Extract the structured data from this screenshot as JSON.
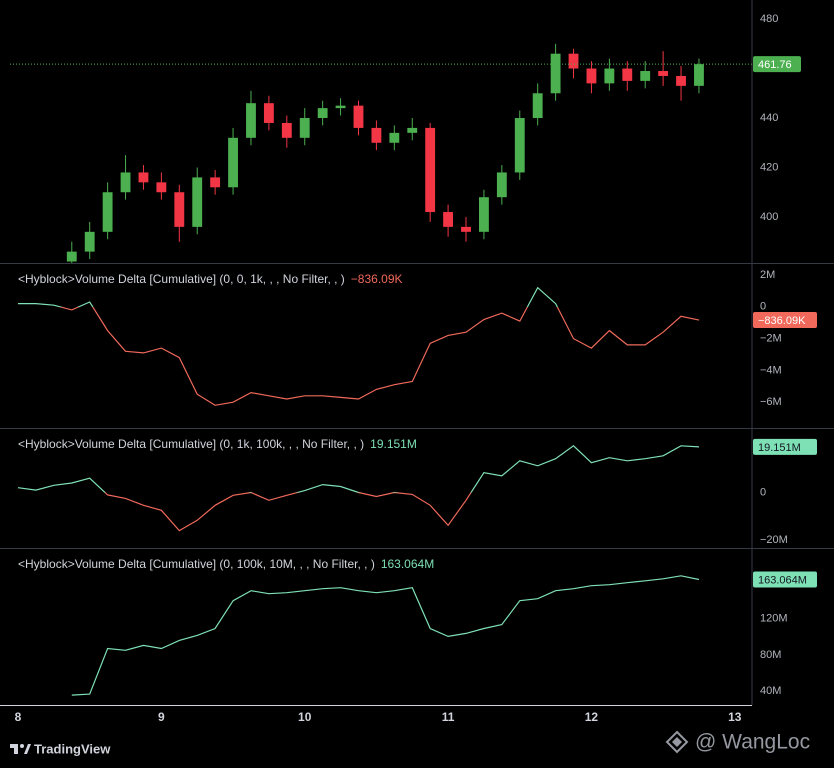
{
  "chart_data": [
    {
      "type": "candlestick",
      "up_color": "#4caf50",
      "down_color": "#f23645",
      "price_line_color": "#4caf50",
      "xlim": [
        7.944,
        13.12
      ],
      "ylim": [
        381.4,
        487.7
      ],
      "yticks": [
        400,
        420,
        440,
        480
      ],
      "x": [
        8.375,
        8.5,
        8.625,
        8.75,
        8.875,
        9.0,
        9.125,
        9.25,
        9.375,
        9.5,
        9.625,
        9.75,
        9.875,
        10.0,
        10.125,
        10.25,
        10.375,
        10.5,
        10.625,
        10.75,
        10.875,
        11.0,
        11.125,
        11.25,
        11.375,
        11.5,
        11.625,
        11.75,
        11.875,
        12.0,
        12.125,
        12.25,
        12.375,
        12.5,
        12.625,
        12.75
      ],
      "open": [
        382,
        386,
        394,
        410,
        418,
        414,
        410,
        396,
        416,
        412,
        432,
        446,
        438,
        432,
        440,
        444,
        445,
        436,
        430,
        434,
        436,
        402,
        396,
        394,
        408,
        418,
        440,
        450,
        466,
        460,
        454,
        460,
        455,
        459,
        457,
        453
      ],
      "high": [
        390,
        398,
        414,
        425,
        421,
        418,
        413,
        420,
        419,
        436,
        451,
        449,
        441,
        444,
        447,
        448,
        447,
        439,
        437,
        440,
        438,
        405,
        400,
        411,
        421,
        443,
        454,
        470,
        468,
        463,
        464,
        463,
        463,
        467,
        461,
        464
      ],
      "low": [
        378,
        383,
        391,
        407,
        411,
        407,
        390,
        393,
        409,
        409,
        429,
        435,
        428,
        429,
        437,
        441,
        433,
        427,
        427,
        431,
        398,
        392,
        390,
        391,
        405,
        415,
        437,
        447,
        456,
        450,
        451,
        451,
        452,
        453,
        447,
        450
      ],
      "close": [
        386,
        394,
        410,
        418,
        414,
        410,
        396,
        416,
        412,
        432,
        446,
        438,
        432,
        440,
        444,
        445,
        436,
        430,
        434,
        436,
        402,
        396,
        394,
        408,
        418,
        440,
        450,
        466,
        460,
        454,
        460,
        455,
        459,
        457,
        453,
        461.76
      ]
    },
    {
      "type": "line",
      "title": "<Hyblock>Volume Delta [Cumulative] (0, 0, 1k, , , No Filter, , )",
      "last_value_label": "−836.09K",
      "color": "#7ee0b5",
      "negative_color": "#f0695b",
      "xlim": [
        7.944,
        13.12
      ],
      "ylim": [
        -7625000,
        2690000
      ],
      "yticks": [
        {
          "value": 2000000,
          "label": "2M"
        },
        0,
        {
          "value": -2000000,
          "label": "−2M"
        },
        {
          "value": -4000000,
          "label": "−4M"
        },
        {
          "value": -6000000,
          "label": "−6M"
        }
      ],
      "x": [
        8.0,
        8.125,
        8.25,
        8.375,
        8.5,
        8.625,
        8.75,
        8.875,
        9.0,
        9.125,
        9.25,
        9.375,
        9.5,
        9.625,
        9.75,
        9.875,
        10.0,
        10.125,
        10.25,
        10.375,
        10.5,
        10.625,
        10.75,
        10.875,
        11.0,
        11.125,
        11.25,
        11.375,
        11.5,
        11.625,
        11.75,
        11.875,
        12.0,
        12.125,
        12.25,
        12.375,
        12.5,
        12.625,
        12.75
      ],
      "values": [
        200000,
        200000,
        100000,
        -200000,
        300000,
        -1500000,
        -2800000,
        -2900000,
        -2600000,
        -3200000,
        -5500000,
        -6200000,
        -6000000,
        -5400000,
        -5600000,
        -5800000,
        -5600000,
        -5600000,
        -5700000,
        -5800000,
        -5200000,
        -4900000,
        -4700000,
        -2300000,
        -1800000,
        -1600000,
        -800000,
        -400000,
        -900000,
        1200000,
        200000,
        -2000000,
        -2600000,
        -1500000,
        -2400000,
        -2400000,
        -1600000,
        -600000,
        -836090
      ]
    },
    {
      "type": "line",
      "title": "<Hyblock>Volume Delta [Cumulative] (0, 1k, 100k, , , No Filter, , )",
      "last_value_label": "19.151M",
      "color": "#7ee0b5",
      "negative_color": "#f0695b",
      "xlim": [
        7.944,
        13.12
      ],
      "ylim": [
        -23330000,
        26670000
      ],
      "yticks": [
        0,
        {
          "value": -20000000,
          "label": "−20M"
        }
      ],
      "x": [
        8.0,
        8.125,
        8.25,
        8.375,
        8.5,
        8.625,
        8.75,
        8.875,
        9.0,
        9.125,
        9.25,
        9.375,
        9.5,
        9.625,
        9.75,
        9.875,
        10.0,
        10.125,
        10.25,
        10.375,
        10.5,
        10.625,
        10.75,
        10.875,
        11.0,
        11.125,
        11.25,
        11.375,
        11.5,
        11.625,
        11.75,
        11.875,
        12.0,
        12.125,
        12.25,
        12.375,
        12.5,
        12.625,
        12.75
      ],
      "values": [
        2000000,
        1000000,
        3000000,
        4000000,
        6000000,
        -1000000,
        -2500000,
        -5400000,
        -7500000,
        -16000000,
        -11700000,
        -5400000,
        -1200000,
        0,
        -3300000,
        -1200000,
        800000,
        3300000,
        2500000,
        0,
        -1700000,
        0,
        -800000,
        -5400000,
        -13800000,
        -3300000,
        8300000,
        7000000,
        13300000,
        11200000,
        14200000,
        19600000,
        12500000,
        14600000,
        13300000,
        14200000,
        15400000,
        19600000,
        19151000
      ]
    },
    {
      "type": "line",
      "title": "<Hyblock>Volume Delta [Cumulative] (0, 100k, 10M, , , No Filter, , )",
      "last_value_label": "163.064M",
      "color": "#7ee0b5",
      "negative_color": "#f0695b",
      "xlim": [
        7.944,
        13.12
      ],
      "ylim": [
        24700000,
        196700000
      ],
      "yticks": [
        {
          "value": 40000000,
          "label": "40M"
        },
        {
          "value": 80000000,
          "label": "80M"
        },
        {
          "value": 120000000,
          "label": "120M"
        }
      ],
      "xticks": [
        8,
        9,
        10,
        11,
        12,
        13
      ],
      "x": [
        8.375,
        8.5,
        8.625,
        8.75,
        8.875,
        9.0,
        9.125,
        9.25,
        9.375,
        9.5,
        9.625,
        9.75,
        9.875,
        10.0,
        10.125,
        10.25,
        10.375,
        10.5,
        10.625,
        10.75,
        10.875,
        11.0,
        11.125,
        11.25,
        11.375,
        11.5,
        11.625,
        11.75,
        11.875,
        12.0,
        12.125,
        12.25,
        12.375,
        12.5,
        12.625,
        12.75
      ],
      "values": [
        35600000,
        36700000,
        87000000,
        85000000,
        90400000,
        87000000,
        95900000,
        101400000,
        109000000,
        139700000,
        150700000,
        147400000,
        148500000,
        150700000,
        152900000,
        154000000,
        150700000,
        148500000,
        150700000,
        154000000,
        109000000,
        100300000,
        103600000,
        109000000,
        113400000,
        139700000,
        141900000,
        150700000,
        152900000,
        156200000,
        157300000,
        159500000,
        161600000,
        163800000,
        167100000,
        163064000
      ]
    }
  ],
  "footer": {
    "brand": "TradingView",
    "watermark": "@ WangLoc"
  }
}
